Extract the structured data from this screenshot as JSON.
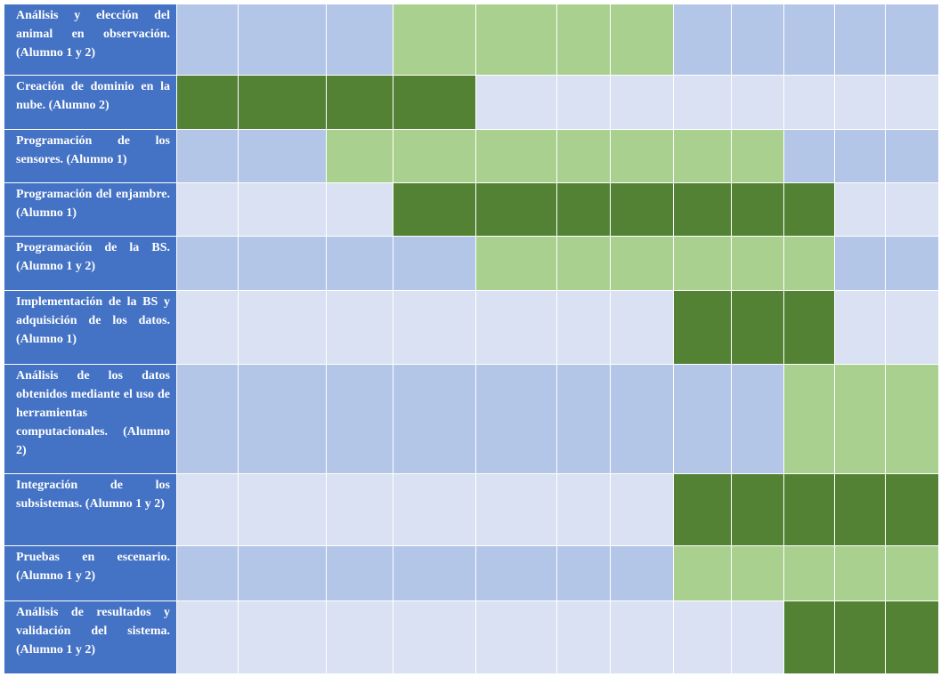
{
  "chart_data": {
    "type": "table",
    "colors": {
      "task_label_bg": "#4472c4",
      "task_label_text": "#ffffff",
      "empty_dark": "#b4c6e7",
      "empty_light": "#d9e1f2",
      "active_light": "#a9d08e",
      "active_dark": "#548235",
      "grid_line": "#ffffff"
    },
    "period_count": 12,
    "tasks": [
      {
        "label": "Análisis y elección del animal en observación. (Alumno 1 y 2)",
        "active": [
          4,
          5,
          6,
          7
        ]
      },
      {
        "label": "Creación de dominio en la nube. (Alumno 2)",
        "active": [
          1,
          2,
          3,
          4
        ]
      },
      {
        "label": "Programación de los sensores. (Alumno 1)",
        "active": [
          3,
          4,
          5,
          6,
          7,
          8,
          9
        ]
      },
      {
        "label": "Programación del enjambre. (Alumno 1)",
        "active": [
          4,
          5,
          6,
          7,
          8,
          9,
          10
        ]
      },
      {
        "label": "Programación de la BS. (Alumno 1 y 2)",
        "active": [
          5,
          6,
          7,
          8,
          9,
          10
        ]
      },
      {
        "label": "Implementación de la BS y adquisición de los datos. (Alumno 1)",
        "active": [
          8,
          9,
          10
        ]
      },
      {
        "label": "Análisis de los datos obtenidos mediante el uso de herramientas computacionales. (Alumno 2)",
        "active": [
          10,
          11,
          12
        ]
      },
      {
        "label": "Integración de los subsistemas. (Alumno 1 y 2)",
        "active": [
          8,
          9,
          10,
          11,
          12
        ]
      },
      {
        "label": "Pruebas en escenario. (Alumno 1 y 2)",
        "active": [
          8,
          9,
          10,
          11,
          12
        ]
      },
      {
        "label": "Análisis de resultados y validación del sistema. (Alumno 1 y 2)",
        "active": [
          10,
          11,
          12
        ]
      }
    ]
  }
}
